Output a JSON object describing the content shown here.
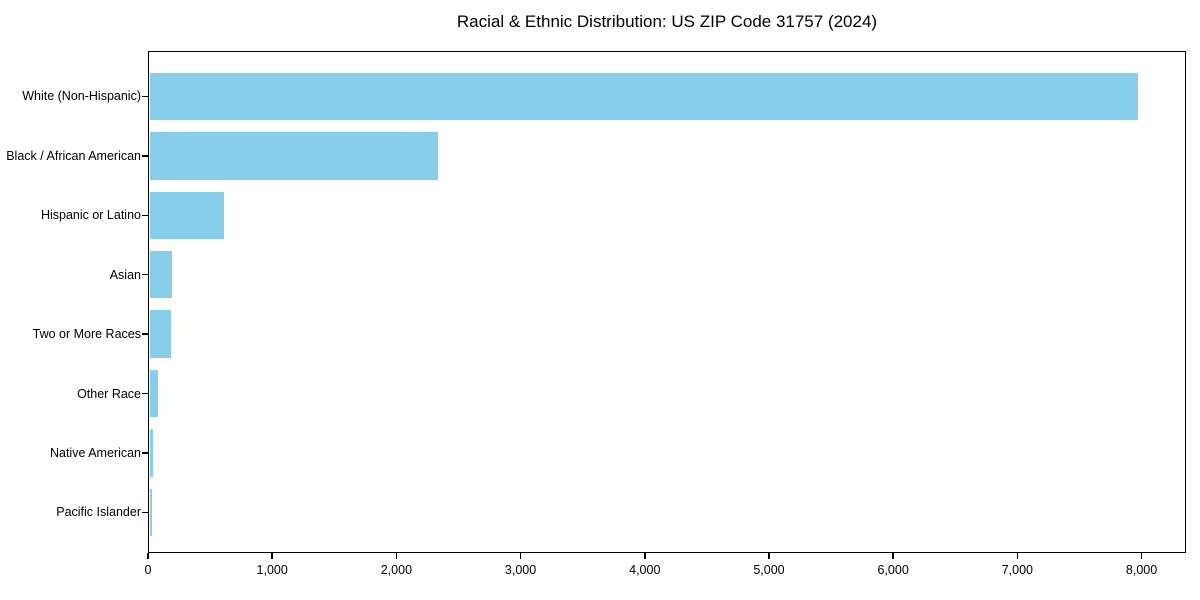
{
  "title": "Racial & Ethnic Distribution: US ZIP Code 31757 (2024)",
  "chart_data": {
    "type": "bar",
    "orientation": "horizontal",
    "title": "Racial & Ethnic Distribution: US ZIP Code 31757 (2024)",
    "categories": [
      "White (Non-Hispanic)",
      "Black / African American",
      "Hispanic or Latino",
      "Asian",
      "Two or More Races",
      "Other Race",
      "Native American",
      "Pacific Islander"
    ],
    "values": [
      7960,
      2325,
      600,
      185,
      170,
      70,
      30,
      18
    ],
    "xlabel": "",
    "ylabel": "",
    "xlim": [
      0,
      8358
    ],
    "x_ticks": [
      0,
      1000,
      2000,
      3000,
      4000,
      5000,
      6000,
      7000,
      8000
    ],
    "x_tick_labels": [
      "0",
      "1,000",
      "2,000",
      "3,000",
      "4,000",
      "5,000",
      "6,000",
      "7,000",
      "8,000"
    ],
    "bar_color": "#87CEEB",
    "axis_color": "#000000",
    "text_color": "#000000",
    "background_color": "#ffffff",
    "grid": false,
    "legend": null
  }
}
